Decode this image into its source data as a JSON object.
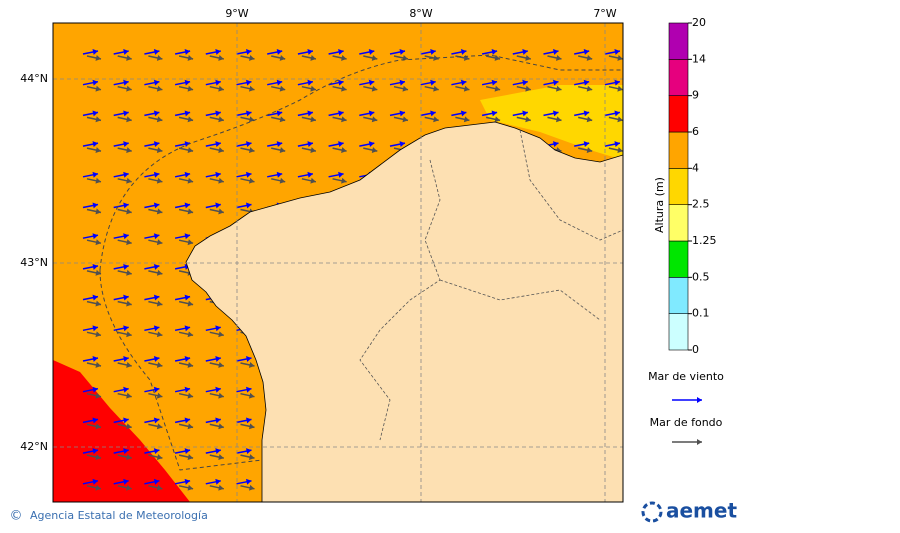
{
  "map": {
    "lon_ticks": [
      "9°W",
      "8°W",
      "7°W"
    ],
    "lat_ticks": [
      "44°N",
      "43°N",
      "42°N"
    ],
    "colorbar": {
      "label": "Altura (m)",
      "ticks": [
        0,
        0.1,
        0.5,
        1.25,
        2.5,
        4,
        6,
        9,
        14,
        20
      ],
      "colors": [
        "#ccffff",
        "#80eaff",
        "#00e600",
        "#ffff66",
        "#ffd700",
        "#ffa500",
        "#ff0000",
        "#e6007e",
        "#b000b0"
      ]
    },
    "legend": [
      {
        "label": "Mar de viento",
        "color": "#0000ff"
      },
      {
        "label": "Mar de fondo",
        "color": "#505050"
      }
    ],
    "footer": {
      "copyright": "©",
      "text": "Agencia Estatal de Meteorología",
      "logo": "aemet"
    }
  }
}
